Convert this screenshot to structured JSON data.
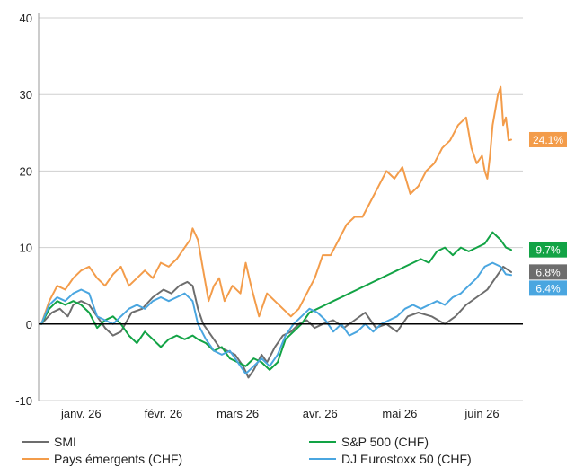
{
  "chart_data": {
    "type": "line",
    "ylim": [
      -10,
      40
    ],
    "yticks": [
      -10,
      0,
      10,
      20,
      30,
      40
    ],
    "x_range": [
      "2025-12-31",
      "2026-06-26"
    ],
    "month_ticks": [
      {
        "label": "janv. 26",
        "date": "2026-01-15"
      },
      {
        "label": "févr. 26",
        "date": "2026-02-15"
      },
      {
        "label": "mars 26",
        "date": "2026-03-15"
      },
      {
        "label": "avr. 26",
        "date": "2026-04-15"
      },
      {
        "label": "mai 26",
        "date": "2026-05-15"
      },
      {
        "label": "juin 26",
        "date": "2026-06-15"
      }
    ],
    "series": [
      {
        "name": "SMI",
        "color": "#6d6d6d",
        "end_label": "6.8%",
        "points": [
          [
            "2025-12-31",
            0
          ],
          [
            "2026-01-04",
            1.5
          ],
          [
            "2026-01-07",
            2
          ],
          [
            "2026-01-10",
            1
          ],
          [
            "2026-01-12",
            2.5
          ],
          [
            "2026-01-15",
            3
          ],
          [
            "2026-01-18",
            2.5
          ],
          [
            "2026-01-21",
            1
          ],
          [
            "2026-01-24",
            -0.5
          ],
          [
            "2026-01-27",
            -1.5
          ],
          [
            "2026-01-30",
            -1
          ],
          [
            "2026-02-03",
            1.5
          ],
          [
            "2026-02-07",
            2
          ],
          [
            "2026-02-11",
            3.5
          ],
          [
            "2026-02-15",
            4.5
          ],
          [
            "2026-02-18",
            4
          ],
          [
            "2026-02-21",
            5
          ],
          [
            "2026-02-24",
            5.5
          ],
          [
            "2026-02-26",
            5
          ],
          [
            "2026-02-28",
            2
          ],
          [
            "2026-03-02",
            0
          ],
          [
            "2026-03-05",
            -1.5
          ],
          [
            "2026-03-08",
            -3
          ],
          [
            "2026-03-11",
            -3.5
          ],
          [
            "2026-03-14",
            -4
          ],
          [
            "2026-03-17",
            -5.5
          ],
          [
            "2026-03-19",
            -7
          ],
          [
            "2026-03-21",
            -6
          ],
          [
            "2026-03-24",
            -4
          ],
          [
            "2026-03-26",
            -5
          ],
          [
            "2026-03-29",
            -3
          ],
          [
            "2026-04-01",
            -1.5
          ],
          [
            "2026-04-04",
            -1
          ],
          [
            "2026-04-07",
            0
          ],
          [
            "2026-04-10",
            0.5
          ],
          [
            "2026-04-13",
            -0.5
          ],
          [
            "2026-04-16",
            0
          ],
          [
            "2026-04-20",
            0.5
          ],
          [
            "2026-04-24",
            -0.5
          ],
          [
            "2026-04-28",
            0.5
          ],
          [
            "2026-05-02",
            1.5
          ],
          [
            "2026-05-06",
            -0.5
          ],
          [
            "2026-05-10",
            0
          ],
          [
            "2026-05-14",
            -1
          ],
          [
            "2026-05-18",
            1
          ],
          [
            "2026-05-22",
            1.5
          ],
          [
            "2026-05-27",
            1
          ],
          [
            "2026-06-01",
            0
          ],
          [
            "2026-06-05",
            1
          ],
          [
            "2026-06-09",
            2.5
          ],
          [
            "2026-06-13",
            3.5
          ],
          [
            "2026-06-17",
            4.5
          ],
          [
            "2026-06-20",
            6
          ],
          [
            "2026-06-23",
            7.5
          ],
          [
            "2026-06-26",
            6.8
          ]
        ]
      },
      {
        "name": "Pays émergents (CHF)",
        "color": "#f39c4a",
        "end_label": "24.1%",
        "points": [
          [
            "2025-12-31",
            0
          ],
          [
            "2026-01-03",
            3
          ],
          [
            "2026-01-06",
            5
          ],
          [
            "2026-01-09",
            4.5
          ],
          [
            "2026-01-12",
            6
          ],
          [
            "2026-01-15",
            7
          ],
          [
            "2026-01-18",
            7.5
          ],
          [
            "2026-01-21",
            6
          ],
          [
            "2026-01-24",
            5
          ],
          [
            "2026-01-27",
            6.5
          ],
          [
            "2026-01-30",
            7.5
          ],
          [
            "2026-02-02",
            5
          ],
          [
            "2026-02-05",
            6
          ],
          [
            "2026-02-08",
            7
          ],
          [
            "2026-02-11",
            6
          ],
          [
            "2026-02-14",
            8
          ],
          [
            "2026-02-17",
            7.5
          ],
          [
            "2026-02-20",
            8.5
          ],
          [
            "2026-02-23",
            10
          ],
          [
            "2026-02-25",
            11
          ],
          [
            "2026-02-26",
            12.5
          ],
          [
            "2026-02-28",
            11
          ],
          [
            "2026-03-02",
            7
          ],
          [
            "2026-03-04",
            3
          ],
          [
            "2026-03-06",
            5
          ],
          [
            "2026-03-08",
            6
          ],
          [
            "2026-03-10",
            3
          ],
          [
            "2026-03-13",
            5
          ],
          [
            "2026-03-16",
            4
          ],
          [
            "2026-03-18",
            8
          ],
          [
            "2026-03-20",
            5
          ],
          [
            "2026-03-23",
            1
          ],
          [
            "2026-03-26",
            4
          ],
          [
            "2026-03-29",
            3
          ],
          [
            "2026-04-01",
            2
          ],
          [
            "2026-04-04",
            1
          ],
          [
            "2026-04-07",
            2
          ],
          [
            "2026-04-10",
            4
          ],
          [
            "2026-04-13",
            6
          ],
          [
            "2026-04-16",
            9
          ],
          [
            "2026-04-19",
            9
          ],
          [
            "2026-04-22",
            11
          ],
          [
            "2026-04-25",
            13
          ],
          [
            "2026-04-28",
            14
          ],
          [
            "2026-05-01",
            14
          ],
          [
            "2026-05-04",
            16
          ],
          [
            "2026-05-07",
            18
          ],
          [
            "2026-05-10",
            20
          ],
          [
            "2026-05-13",
            19
          ],
          [
            "2026-05-16",
            20.5
          ],
          [
            "2026-05-19",
            17
          ],
          [
            "2026-05-22",
            18
          ],
          [
            "2026-05-25",
            20
          ],
          [
            "2026-05-28",
            21
          ],
          [
            "2026-05-31",
            23
          ],
          [
            "2026-06-03",
            24
          ],
          [
            "2026-06-06",
            26
          ],
          [
            "2026-06-09",
            27
          ],
          [
            "2026-06-11",
            23
          ],
          [
            "2026-06-13",
            21
          ],
          [
            "2026-06-15",
            22
          ],
          [
            "2026-06-16",
            20
          ],
          [
            "2026-06-17",
            19
          ],
          [
            "2026-06-18",
            22
          ],
          [
            "2026-06-19",
            26
          ],
          [
            "2026-06-20",
            28
          ],
          [
            "2026-06-21",
            30
          ],
          [
            "2026-06-22",
            31
          ],
          [
            "2026-06-23",
            26
          ],
          [
            "2026-06-24",
            27
          ],
          [
            "2026-06-25",
            24
          ],
          [
            "2026-06-26",
            24.1
          ]
        ]
      },
      {
        "name": "S&P 500 (CHF)",
        "color": "#12a345",
        "end_label": "9.7%",
        "points": [
          [
            "2025-12-31",
            0
          ],
          [
            "2026-01-03",
            2
          ],
          [
            "2026-01-06",
            3
          ],
          [
            "2026-01-09",
            2.5
          ],
          [
            "2026-01-12",
            3
          ],
          [
            "2026-01-15",
            2.5
          ],
          [
            "2026-01-18",
            1.5
          ],
          [
            "2026-01-21",
            -0.5
          ],
          [
            "2026-01-24",
            0.5
          ],
          [
            "2026-01-27",
            1
          ],
          [
            "2026-01-30",
            0
          ],
          [
            "2026-02-02",
            -1.5
          ],
          [
            "2026-02-05",
            -2.5
          ],
          [
            "2026-02-08",
            -1
          ],
          [
            "2026-02-11",
            -2
          ],
          [
            "2026-02-14",
            -3
          ],
          [
            "2026-02-17",
            -2
          ],
          [
            "2026-02-20",
            -1.5
          ],
          [
            "2026-02-23",
            -2
          ],
          [
            "2026-02-26",
            -1.5
          ],
          [
            "2026-02-28",
            -2
          ],
          [
            "2026-03-03",
            -2.5
          ],
          [
            "2026-03-06",
            -3.5
          ],
          [
            "2026-03-09",
            -3
          ],
          [
            "2026-03-12",
            -4.5
          ],
          [
            "2026-03-15",
            -5
          ],
          [
            "2026-03-18",
            -5.5
          ],
          [
            "2026-03-21",
            -4.5
          ],
          [
            "2026-03-24",
            -5
          ],
          [
            "2026-03-27",
            -6
          ],
          [
            "2026-03-30",
            -5
          ],
          [
            "2026-04-02",
            -2
          ],
          [
            "2026-04-05",
            -1
          ],
          [
            "2026-04-08",
            0
          ],
          [
            "2026-04-11",
            1.5
          ],
          [
            "2026-04-14",
            2
          ],
          [
            "2026-04-17",
            2.5
          ],
          [
            "2026-04-20",
            3
          ],
          [
            "2026-04-23",
            3.5
          ],
          [
            "2026-04-26",
            4
          ],
          [
            "2026-04-29",
            4.5
          ],
          [
            "2026-05-02",
            5
          ],
          [
            "2026-05-05",
            5.5
          ],
          [
            "2026-05-08",
            6
          ],
          [
            "2026-05-11",
            6.5
          ],
          [
            "2026-05-14",
            7
          ],
          [
            "2026-05-17",
            7.5
          ],
          [
            "2026-05-20",
            8
          ],
          [
            "2026-05-23",
            8.5
          ],
          [
            "2026-05-26",
            8
          ],
          [
            "2026-05-29",
            9.5
          ],
          [
            "2026-06-01",
            10
          ],
          [
            "2026-06-04",
            9
          ],
          [
            "2026-06-07",
            10
          ],
          [
            "2026-06-10",
            9.5
          ],
          [
            "2026-06-13",
            10
          ],
          [
            "2026-06-16",
            10.5
          ],
          [
            "2026-06-19",
            12
          ],
          [
            "2026-06-22",
            11
          ],
          [
            "2026-06-24",
            10
          ],
          [
            "2026-06-26",
            9.7
          ]
        ]
      },
      {
        "name": "DJ Eurostoxx 50 (CHF)",
        "color": "#4aa6e0",
        "end_label": "6.4%",
        "points": [
          [
            "2025-12-31",
            0
          ],
          [
            "2026-01-03",
            2.5
          ],
          [
            "2026-01-06",
            3.5
          ],
          [
            "2026-01-09",
            3
          ],
          [
            "2026-01-12",
            4
          ],
          [
            "2026-01-15",
            4.5
          ],
          [
            "2026-01-18",
            4
          ],
          [
            "2026-01-21",
            1
          ],
          [
            "2026-01-24",
            0.5
          ],
          [
            "2026-01-27",
            0
          ],
          [
            "2026-01-30",
            1
          ],
          [
            "2026-02-02",
            2
          ],
          [
            "2026-02-05",
            2.5
          ],
          [
            "2026-02-08",
            2
          ],
          [
            "2026-02-11",
            3
          ],
          [
            "2026-02-14",
            3.5
          ],
          [
            "2026-02-17",
            3
          ],
          [
            "2026-02-20",
            3.5
          ],
          [
            "2026-02-23",
            4
          ],
          [
            "2026-02-26",
            3
          ],
          [
            "2026-02-28",
            0
          ],
          [
            "2026-03-03",
            -2
          ],
          [
            "2026-03-06",
            -3.5
          ],
          [
            "2026-03-09",
            -4
          ],
          [
            "2026-03-12",
            -3.5
          ],
          [
            "2026-03-15",
            -5
          ],
          [
            "2026-03-18",
            -6.5
          ],
          [
            "2026-03-21",
            -5.5
          ],
          [
            "2026-03-24",
            -4.5
          ],
          [
            "2026-03-27",
            -5.5
          ],
          [
            "2026-03-30",
            -4
          ],
          [
            "2026-04-02",
            -1.5
          ],
          [
            "2026-04-05",
            0
          ],
          [
            "2026-04-08",
            1
          ],
          [
            "2026-04-11",
            2
          ],
          [
            "2026-04-14",
            1.5
          ],
          [
            "2026-04-17",
            0.5
          ],
          [
            "2026-04-20",
            -1
          ],
          [
            "2026-04-23",
            0
          ],
          [
            "2026-04-26",
            -1.5
          ],
          [
            "2026-04-29",
            -1
          ],
          [
            "2026-05-02",
            0
          ],
          [
            "2026-05-05",
            -1
          ],
          [
            "2026-05-08",
            0
          ],
          [
            "2026-05-11",
            0.5
          ],
          [
            "2026-05-14",
            1
          ],
          [
            "2026-05-17",
            2
          ],
          [
            "2026-05-20",
            2.5
          ],
          [
            "2026-05-23",
            2
          ],
          [
            "2026-05-26",
            2.5
          ],
          [
            "2026-05-29",
            3
          ],
          [
            "2026-06-01",
            2.5
          ],
          [
            "2026-06-04",
            3.5
          ],
          [
            "2026-06-07",
            4
          ],
          [
            "2026-06-10",
            5
          ],
          [
            "2026-06-13",
            6
          ],
          [
            "2026-06-16",
            7.5
          ],
          [
            "2026-06-19",
            8
          ],
          [
            "2026-06-22",
            7.5
          ],
          [
            "2026-06-24",
            6.5
          ],
          [
            "2026-06-26",
            6.4
          ]
        ]
      }
    ],
    "end_labels_order": [
      "Pays émergents (CHF)",
      "S&P 500 (CHF)",
      "SMI",
      "DJ Eurostoxx 50 (CHF)"
    ]
  },
  "legend": [
    {
      "label": "SMI",
      "color": "#6d6d6d"
    },
    {
      "label": "S&P 500 (CHF)",
      "color": "#12a345"
    },
    {
      "label": "Pays émergents (CHF)",
      "color": "#f39c4a"
    },
    {
      "label": "DJ Eurostoxx 50 (CHF)",
      "color": "#4aa6e0"
    }
  ]
}
